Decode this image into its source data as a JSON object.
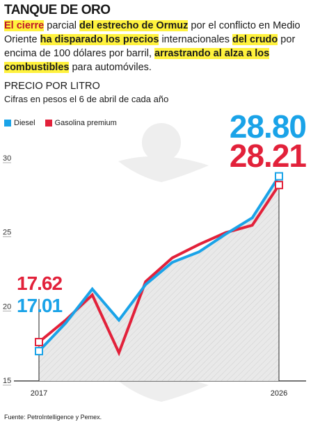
{
  "header": {
    "title": "TANQUE DE ORO"
  },
  "intro": {
    "p1": "El cierre",
    "p2": " parcial ",
    "p3": "del estrecho de Ormuz",
    "p4": " por el conflicto en Medio Oriente ",
    "p5": "ha disparado los precios",
    "p6": " internacionales ",
    "p7": "del crudo",
    "p8": " por encima de 100 dólares por barril, ",
    "p9": "arrastrando al alza a los combustibles",
    "p10": " para automóviles."
  },
  "colors": {
    "diesel": "#1aa3e8",
    "gasolina": "#e2213a",
    "highlight": "#fff23d"
  },
  "chart_data": {
    "type": "line",
    "title": "PRECIO POR LITRO",
    "subtitle": "Cifras en pesos el 6 de abril de cada año",
    "x": [
      2017,
      2018,
      2019,
      2020,
      2021,
      2022,
      2023,
      2024,
      2025,
      2026
    ],
    "x_tick_labels": [
      "2017",
      "2026"
    ],
    "ylim": [
      15,
      32
    ],
    "y_ticks": [
      15,
      20,
      25,
      30
    ],
    "grid": false,
    "legend_position": "top-left",
    "series": [
      {
        "name": "Diesel",
        "values": [
          17.01,
          18.9,
          21.2,
          19.1,
          21.5,
          23.0,
          23.7,
          24.9,
          26.0,
          28.8
        ]
      },
      {
        "name": "Gasolina premium",
        "values": [
          17.62,
          19.1,
          20.8,
          16.9,
          21.7,
          23.3,
          24.2,
          25.0,
          25.5,
          28.21
        ]
      }
    ],
    "annotations": {
      "diesel_start": "17.01",
      "gasolina_start": "17.62",
      "diesel_end": "28.80",
      "gasolina_end": "28.21"
    }
  },
  "source": "Fuente: PetroIntelligence y Pemex."
}
